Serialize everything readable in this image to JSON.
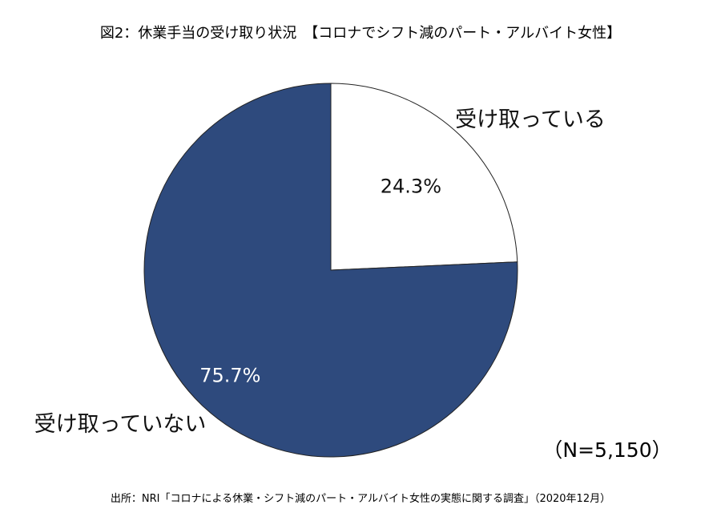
{
  "chart_data": {
    "type": "pie",
    "title": "図2：休業手当の受け取り状況　【コロナでシフト減のパート・アルバイト女性】",
    "categories": [
      "受け取っている",
      "受け取っていない"
    ],
    "values": [
      24.3,
      75.7
    ],
    "value_labels": [
      "24.3%",
      "75.7%"
    ],
    "colors": [
      "#ffffff",
      "#2e4a7d"
    ],
    "text_colors": [
      "#111111",
      "#ffffff"
    ],
    "sample_size": "（N=5,150）",
    "source": "出所：NRI「コロナによる休業・シフト減のパート・アルバイト女性の実態に関する調査」（2020年12月）"
  }
}
